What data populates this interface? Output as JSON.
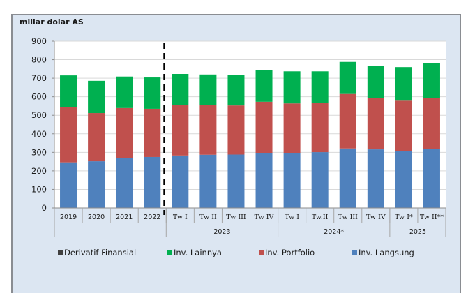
{
  "chart_data": {
    "type": "bar",
    "stacked": true,
    "title": "",
    "ylabel": "miliar dolar AS",
    "xlabel": "",
    "ylim": [
      0,
      900
    ],
    "yticks": [
      0,
      100,
      200,
      300,
      400,
      500,
      600,
      700,
      800,
      900
    ],
    "grid": true,
    "legend_position": "bottom",
    "categories": [
      "2019",
      "2020",
      "2021",
      "2022",
      "Tw I",
      "Tw II",
      "Tw III",
      "Tw IV",
      "Tw I",
      "Tw.II",
      "Tw III",
      "Tw IV",
      "Tw I*",
      "Tw II**"
    ],
    "groups": [
      {
        "label": "",
        "span": 4
      },
      {
        "label": "2023",
        "span": 4
      },
      {
        "label": "2024*",
        "span": 4
      },
      {
        "label": "2025",
        "span": 2
      }
    ],
    "divider_after_index": 3,
    "series": [
      {
        "name": "Inv. Langsung",
        "color": "#4f81bd",
        "values": [
          246,
          252,
          271,
          275,
          283,
          287,
          288,
          297,
          296,
          301,
          321,
          316,
          305,
          318
        ]
      },
      {
        "name": "Inv. Portfolio",
        "color": "#c0504d",
        "values": [
          298,
          260,
          268,
          260,
          272,
          270,
          265,
          276,
          268,
          267,
          294,
          277,
          274,
          276
        ]
      },
      {
        "name": "Derivatif Finansial",
        "color": "#404040",
        "values": [
          0,
          0,
          0,
          0,
          0,
          0,
          0,
          0,
          0,
          0,
          0,
          0,
          0,
          0
        ]
      },
      {
        "name": "Inv. Lainnya",
        "color": "#00b050",
        "values": [
          171,
          174,
          170,
          169,
          168,
          163,
          165,
          172,
          173,
          169,
          173,
          175,
          181,
          186
        ]
      }
    ],
    "legend": [
      {
        "name": "Derivatif Finansial",
        "color": "#404040"
      },
      {
        "name": "Inv. Lainnya",
        "color": "#00b050"
      },
      {
        "name": "Inv. Portfolio",
        "color": "#c0504d"
      },
      {
        "name": "Inv. Langsung",
        "color": "#4f81bd"
      }
    ]
  }
}
